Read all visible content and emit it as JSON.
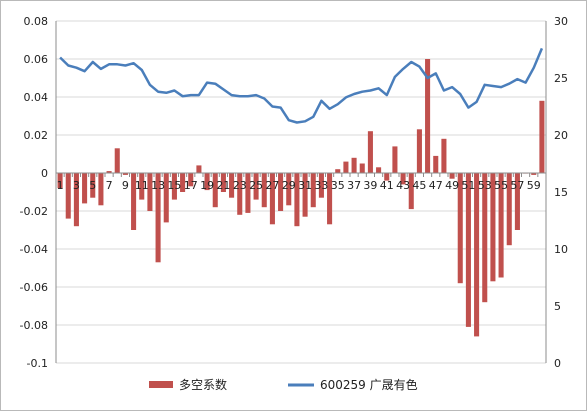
{
  "chart_data": {
    "type": "bar+line",
    "colors": {
      "bar": "#c0504d",
      "line": "#4a7ebb",
      "grid": "#d9d9d9",
      "axis": "#8c8c8c"
    },
    "x_tick_labels": [
      "1",
      "3",
      "5",
      "7",
      "9",
      "11",
      "13",
      "15",
      "17",
      "19",
      "21",
      "23",
      "25",
      "27",
      "29",
      "31",
      "33",
      "35",
      "37",
      "39",
      "41",
      "43",
      "45",
      "47",
      "49",
      "51",
      "53",
      "55",
      "57",
      "59"
    ],
    "y_left": {
      "min": -0.1,
      "max": 0.08,
      "step": 0.02,
      "ticks": [
        "-0.1",
        "-0.08",
        "-0.06",
        "-0.04",
        "-0.02",
        "0",
        "0.02",
        "0.04",
        "0.06",
        "0.08"
      ]
    },
    "y_right": {
      "min": 0,
      "max": 30,
      "step": 5,
      "ticks": [
        "0",
        "5",
        "10",
        "15",
        "20",
        "25",
        "30"
      ]
    },
    "grid": true,
    "legend_position": "bottom",
    "series": [
      {
        "name": "多空系数",
        "kind": "bar",
        "axis": "left",
        "values": [
          -0.008,
          -0.024,
          -0.028,
          -0.016,
          -0.013,
          -0.017,
          0.001,
          0.013,
          -0.001,
          -0.03,
          -0.014,
          -0.02,
          -0.047,
          -0.026,
          -0.014,
          -0.01,
          -0.007,
          0.004,
          -0.009,
          -0.018,
          -0.01,
          -0.013,
          -0.022,
          -0.021,
          -0.014,
          -0.018,
          -0.027,
          -0.02,
          -0.017,
          -0.028,
          -0.023,
          -0.018,
          -0.013,
          -0.027,
          0.002,
          0.006,
          0.008,
          0.005,
          0.022,
          0.003,
          -0.004,
          0.014,
          -0.006,
          -0.019,
          0.023,
          0.06,
          0.009,
          0.018,
          -0.003,
          -0.058,
          -0.081,
          -0.086,
          -0.068,
          -0.057,
          -0.055,
          -0.038,
          -0.03,
          0.0,
          -0.001,
          0.038
        ]
      },
      {
        "name": "600259 广晟有色",
        "kind": "line",
        "axis": "right",
        "values": [
          26.8,
          26.1,
          25.9,
          25.6,
          26.4,
          25.8,
          26.2,
          26.2,
          26.1,
          26.3,
          25.7,
          24.4,
          23.8,
          23.7,
          23.9,
          23.4,
          23.5,
          23.5,
          24.6,
          24.5,
          24.0,
          23.5,
          23.4,
          23.4,
          23.5,
          23.2,
          22.5,
          22.4,
          21.3,
          21.1,
          21.2,
          21.6,
          23.0,
          22.3,
          22.7,
          23.3,
          23.6,
          23.8,
          23.9,
          24.1,
          23.5,
          25.1,
          25.8,
          26.4,
          26.0,
          25.0,
          25.4,
          23.9,
          24.2,
          23.6,
          22.4,
          22.9,
          24.4,
          24.3,
          24.2,
          24.5,
          24.9,
          24.6,
          25.9,
          27.6
        ]
      }
    ]
  }
}
